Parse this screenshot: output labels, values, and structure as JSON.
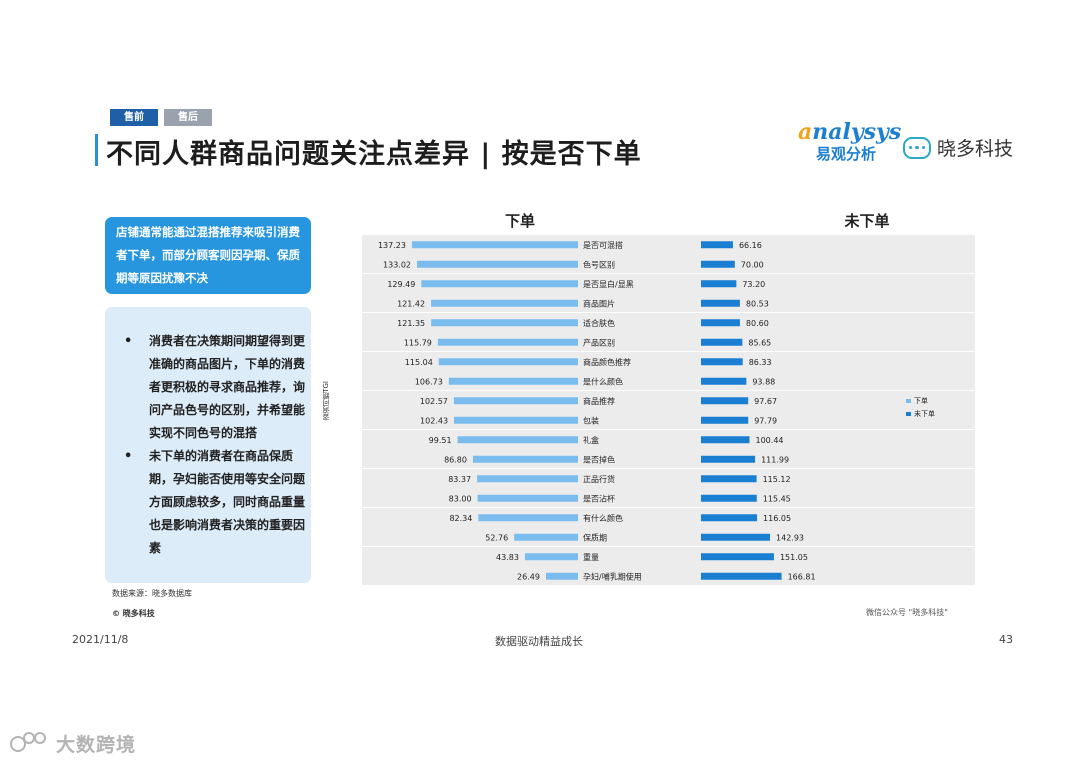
{
  "tabs": [
    "售前",
    "售后"
  ],
  "title": "不同人群商品问题关注点差异 | 按是否下单",
  "logos": {
    "analysys_en_first": "a",
    "analysys_en_rest": "nalysys",
    "analysys_cn": "易观分析",
    "xd_name": "晓多科技"
  },
  "highlight_box": "店铺通常能通过混搭推荐来吸引消费者下单，而部分顾客则因孕期、保质期等原因扰豫不决",
  "bullets": [
    "消费者在决策期间期望得到更准确的商品图片，下单的消费者更积极的寻求商品推荐，询问产品色号的区别，并希望能实现不同色号的混搭",
    "未下单的消费者在商品保质期，孕妇能否使用等安全问题方面顾虑较多，同时商品重量也是影响消费者决策的重要因素"
  ],
  "source": "数据来源：晓多数据库",
  "copyright": "© 晓多科技",
  "wechat": "微信公众号 \"晓多科技\"",
  "footer": {
    "date": "2021/11/8",
    "middle": "数据驱动精益成长",
    "page": "43"
  },
  "watermark": "大数跨境",
  "chart_data": {
    "type": "bar",
    "ylabel": "咨询问题TGI",
    "panel_titles": [
      "下单",
      "未下单"
    ],
    "categories": [
      "是否可混搭",
      "色号区别",
      "是否显白/显黑",
      "商品图片",
      "适合肤色",
      "产品区别",
      "商品颜色推荐",
      "是什么颜色",
      "商品推荐",
      "包装",
      "礼盒",
      "是否掉色",
      "正品行货",
      "是否沾杯",
      "有什么颜色",
      "保质期",
      "重量",
      "孕妇/哺乳期使用"
    ],
    "series": [
      {
        "name": "下单",
        "color": "#7bbcee",
        "values": [
          137.23,
          133.02,
          129.49,
          121.42,
          121.35,
          115.79,
          115.04,
          106.73,
          102.57,
          102.43,
          99.51,
          86.8,
          83.37,
          83.0,
          82.34,
          52.76,
          43.83,
          26.49
        ]
      },
      {
        "name": "未下单",
        "color": "#1a7fd3",
        "values": [
          66.16,
          70.0,
          73.2,
          80.53,
          80.6,
          85.65,
          86.33,
          93.88,
          97.67,
          97.79,
          100.44,
          111.99,
          115.12,
          115.45,
          116.05,
          142.93,
          151.05,
          166.81
        ]
      }
    ],
    "legend_position": "right"
  }
}
